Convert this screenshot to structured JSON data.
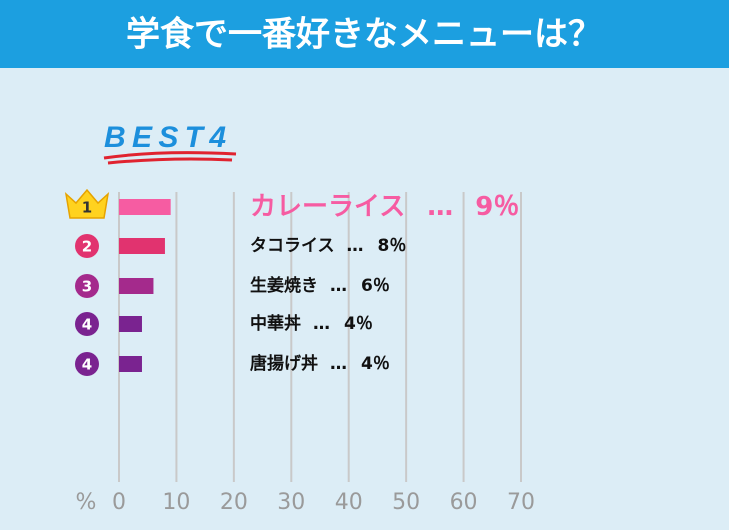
{
  "chart_data": {
    "type": "bar",
    "orientation": "horizontal",
    "title": "学食で一番好きなメニューは？",
    "badge": "BEST4",
    "categories": [
      "カレーライス",
      "タコライス",
      "生姜焼き",
      "中華丼",
      "唐揚げ丼"
    ],
    "ranks": [
      1,
      2,
      3,
      4,
      4
    ],
    "separator": "…",
    "values": [
      9,
      8,
      6,
      4,
      4
    ],
    "value_labels": [
      "9％",
      "8％",
      "6％",
      "4％",
      "4％"
    ],
    "colors": [
      "#f65ca2",
      "#e1336f",
      "#a42a8c",
      "#7a2390",
      "#7a2390"
    ],
    "xlabel": "%",
    "xlim": [
      0,
      70
    ],
    "xticks": [
      0,
      10,
      20,
      30,
      40,
      50,
      60,
      70
    ],
    "grid": true
  }
}
